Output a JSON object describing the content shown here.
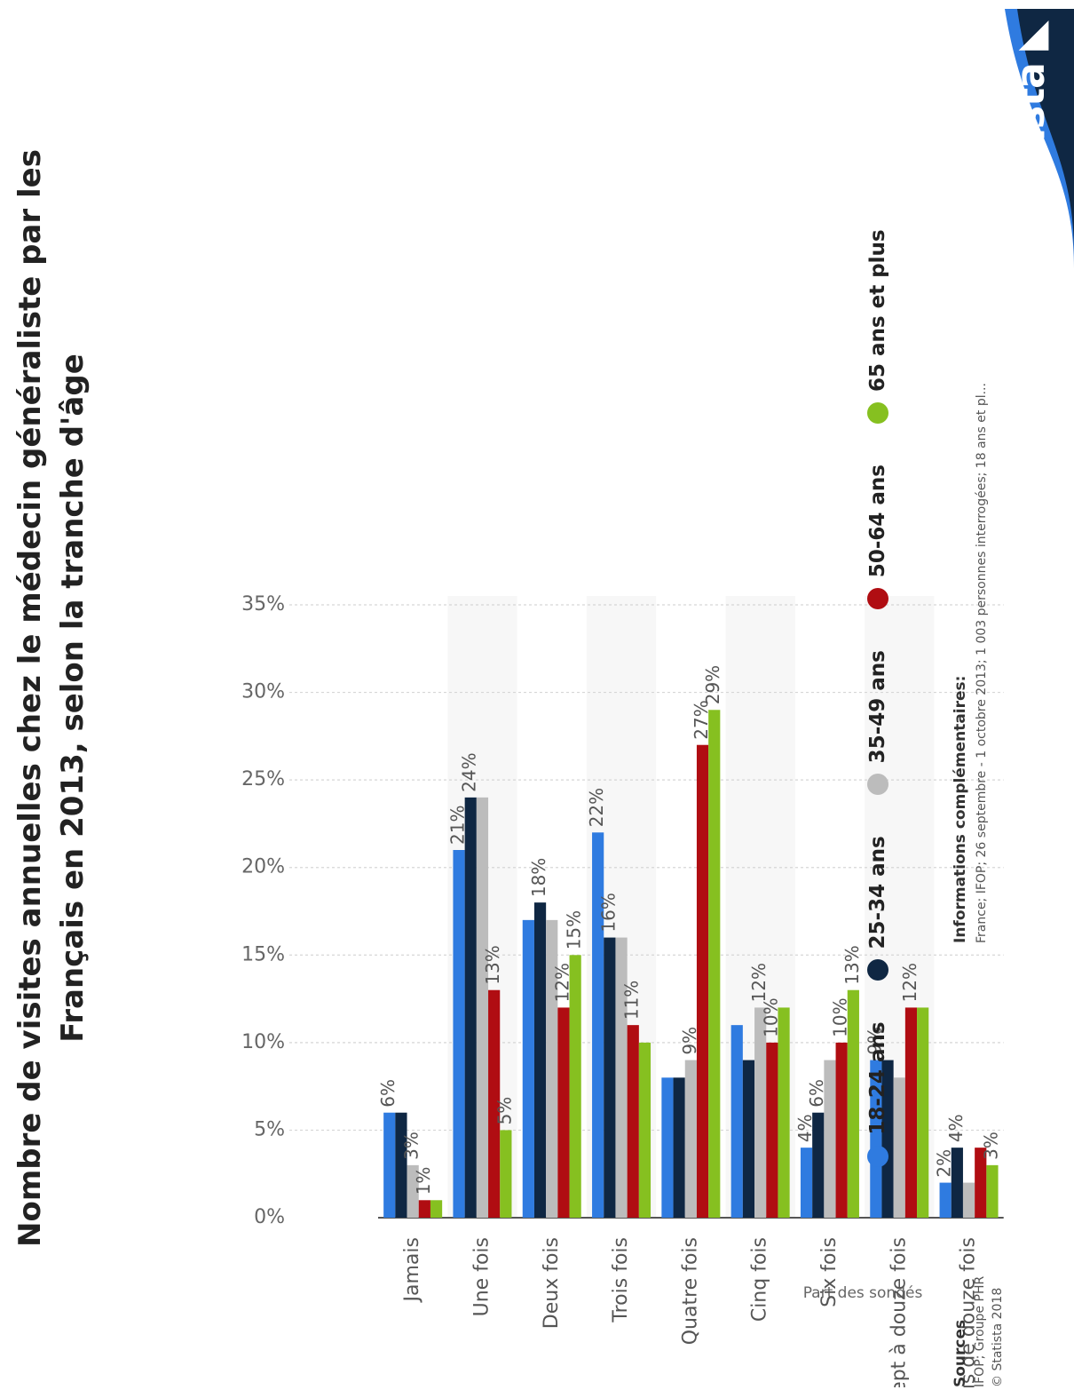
{
  "title_line1": "Nombre de visites annuelles chez le médecin généraliste par les",
  "title_line2": "Français en 2013, selon la tranche d'âge",
  "info_heading": "Informations complémentaires:",
  "info_text": "France; IFOP; 26 septembre - 1 octobre 2013; 1 003 personnes interrogées; 18 ans et pl...",
  "sources_heading": "Sources",
  "sources_line1": "IFOP; Groupe PHR",
  "sources_line2": "© Statista 2018",
  "brand": "statista",
  "colors": {
    "18-24": "#2f7be0",
    "25-34": "#0f2743",
    "35-49": "#bcbcbc",
    "50-64": "#b00d12",
    "65+": "#86c020",
    "brand_dark": "#0f2743",
    "brand_blue": "#2f7be0"
  },
  "chart_data": {
    "type": "bar",
    "orientation": "horizontal",
    "categories": [
      "Jamais",
      "Une fois",
      "Deux fois",
      "Trois fois",
      "Quatre fois",
      "Cinq fois",
      "Six fois",
      "Sept à douze fois",
      "Plus de douze fois"
    ],
    "series": [
      {
        "name": "18-24 ans",
        "color": "#2f7be0",
        "values": [
          6,
          21,
          17,
          22,
          8,
          11,
          4,
          9,
          2
        ]
      },
      {
        "name": "25-34 ans",
        "color": "#0f2743",
        "values": [
          6,
          24,
          18,
          16,
          8,
          9,
          6,
          9,
          4
        ]
      },
      {
        "name": "35-49 ans",
        "color": "#bcbcbc",
        "values": [
          3,
          24,
          17,
          16,
          9,
          12,
          9,
          8,
          2
        ]
      },
      {
        "name": "50-64 ans",
        "color": "#b00d12",
        "values": [
          1,
          13,
          12,
          11,
          27,
          10,
          10,
          12,
          4
        ]
      },
      {
        "name": "65 ans et plus",
        "color": "#86c020",
        "values": [
          1,
          5,
          15,
          10,
          29,
          12,
          13,
          12,
          3
        ]
      }
    ],
    "labels": [
      [
        {
          "s": 0,
          "t": "6%"
        },
        {
          "s": 2,
          "t": "3%"
        },
        {
          "s": 3,
          "t": "1%"
        }
      ],
      [
        {
          "s": 0,
          "t": "21%"
        },
        {
          "s": 1,
          "t": "24%"
        },
        {
          "s": 3,
          "t": "13%"
        },
        {
          "s": 4,
          "t": "5%"
        }
      ],
      [
        {
          "s": 1,
          "t": "18%"
        },
        {
          "s": 3,
          "t": "12%"
        },
        {
          "s": 4,
          "t": "15%"
        }
      ],
      [
        {
          "s": 0,
          "t": "22%"
        },
        {
          "s": 1,
          "t": "16%"
        },
        {
          "s": 3,
          "t": "11%"
        }
      ],
      [
        {
          "s": 2,
          "t": "9%"
        },
        {
          "s": 3,
          "t": "27%"
        },
        {
          "s": 4,
          "t": "29%"
        }
      ],
      [
        {
          "s": 2,
          "t": "12%"
        },
        {
          "s": 3,
          "t": "10%"
        }
      ],
      [
        {
          "s": 0,
          "t": "4%"
        },
        {
          "s": 1,
          "t": "6%"
        },
        {
          "s": 3,
          "t": "10%"
        },
        {
          "s": 4,
          "t": "13%"
        }
      ],
      [
        {
          "s": 0,
          "t": "9%"
        },
        {
          "s": 3,
          "t": "12%"
        }
      ],
      [
        {
          "s": 0,
          "t": "2%"
        },
        {
          "s": 1,
          "t": "4%"
        },
        {
          "s": 4,
          "t": "3%"
        }
      ]
    ],
    "xlabel": "Part des sondés",
    "xlim": [
      0,
      35
    ],
    "ticks": [
      "0%",
      "5%",
      "10%",
      "15%",
      "20%",
      "25%",
      "30%",
      "35%"
    ],
    "grid": true,
    "legend_position": "bottom"
  }
}
